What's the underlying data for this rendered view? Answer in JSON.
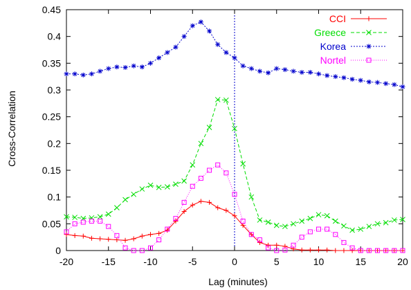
{
  "chart_data": {
    "type": "line",
    "xlabel": "Lag (minutes)",
    "ylabel": "Cross-Correlation",
    "xlim": [
      -20,
      20
    ],
    "ylim": [
      0,
      0.45
    ],
    "xticks": [
      -20,
      -15,
      -10,
      -5,
      0,
      5,
      10,
      15,
      20
    ],
    "xtick_labels": [
      "-20",
      "-15",
      "-10",
      "-5",
      "0",
      "5",
      "10",
      "15",
      "20"
    ],
    "yticks": [
      0,
      0.05,
      0.1,
      0.15,
      0.2,
      0.25,
      0.3,
      0.35,
      0.4,
      0.45
    ],
    "ytick_labels": [
      "0",
      "0.05",
      "0.1",
      "0.15",
      "0.2",
      "0.25",
      "0.3",
      "0.35",
      "0.4",
      "0.45"
    ],
    "grid": false,
    "legend_position": "top-right",
    "reference_line": {
      "x": 0,
      "color": "#0000cc",
      "style": "dotted"
    },
    "x": [
      -20,
      -19,
      -18,
      -17,
      -16,
      -15,
      -14,
      -13,
      -12,
      -11,
      -10,
      -9,
      -8,
      -7,
      -6,
      -5,
      -4,
      -3,
      -2,
      -1,
      0,
      1,
      2,
      3,
      4,
      5,
      6,
      7,
      8,
      9,
      10,
      11,
      12,
      13,
      14,
      15,
      16,
      17,
      18,
      19,
      20
    ],
    "series": [
      {
        "name": "CCI",
        "color": "#ff0000",
        "marker": "plus",
        "dash": "",
        "values": [
          0.03,
          0.028,
          0.027,
          0.023,
          0.022,
          0.021,
          0.02,
          0.019,
          0.022,
          0.027,
          0.03,
          0.032,
          0.038,
          0.055,
          0.073,
          0.085,
          0.092,
          0.09,
          0.08,
          0.075,
          0.065,
          0.047,
          0.03,
          0.015,
          0.01,
          0.01,
          0.008,
          0.003,
          0.001,
          0.001,
          0.001,
          0.001,
          0.0,
          0.0,
          0.0,
          0.0,
          0.0,
          0.0,
          0.0,
          0.0,
          0.0
        ]
      },
      {
        "name": "Greece",
        "color": "#00dd00",
        "marker": "cross",
        "dash": "5,3",
        "values": [
          0.063,
          0.062,
          0.06,
          0.061,
          0.063,
          0.068,
          0.08,
          0.095,
          0.105,
          0.115,
          0.122,
          0.118,
          0.119,
          0.124,
          0.13,
          0.16,
          0.2,
          0.23,
          0.282,
          0.281,
          0.228,
          0.162,
          0.1,
          0.057,
          0.053,
          0.047,
          0.045,
          0.05,
          0.055,
          0.06,
          0.067,
          0.065,
          0.055,
          0.046,
          0.038,
          0.04,
          0.045,
          0.05,
          0.052,
          0.057,
          0.058
        ]
      },
      {
        "name": "Korea",
        "color": "#0000cc",
        "marker": "star",
        "dash": "2,2",
        "values": [
          0.33,
          0.33,
          0.328,
          0.33,
          0.335,
          0.34,
          0.343,
          0.342,
          0.345,
          0.343,
          0.35,
          0.36,
          0.37,
          0.38,
          0.4,
          0.42,
          0.427,
          0.41,
          0.385,
          0.37,
          0.36,
          0.345,
          0.34,
          0.335,
          0.332,
          0.34,
          0.338,
          0.335,
          0.333,
          0.333,
          0.33,
          0.327,
          0.325,
          0.323,
          0.32,
          0.318,
          0.315,
          0.314,
          0.312,
          0.31,
          0.306
        ]
      },
      {
        "name": "Nortel",
        "color": "#ff00ff",
        "marker": "square",
        "dash": "1,2",
        "values": [
          0.035,
          0.05,
          0.053,
          0.055,
          0.055,
          0.045,
          0.028,
          0.005,
          0.0,
          0.0,
          0.005,
          0.02,
          0.04,
          0.06,
          0.09,
          0.12,
          0.135,
          0.15,
          0.16,
          0.145,
          0.105,
          0.055,
          0.03,
          0.02,
          0.005,
          0.0,
          0.001,
          0.01,
          0.025,
          0.035,
          0.04,
          0.04,
          0.03,
          0.015,
          0.005,
          0.0,
          0.0,
          0.0,
          0.0,
          0.0,
          0.0
        ]
      }
    ]
  }
}
